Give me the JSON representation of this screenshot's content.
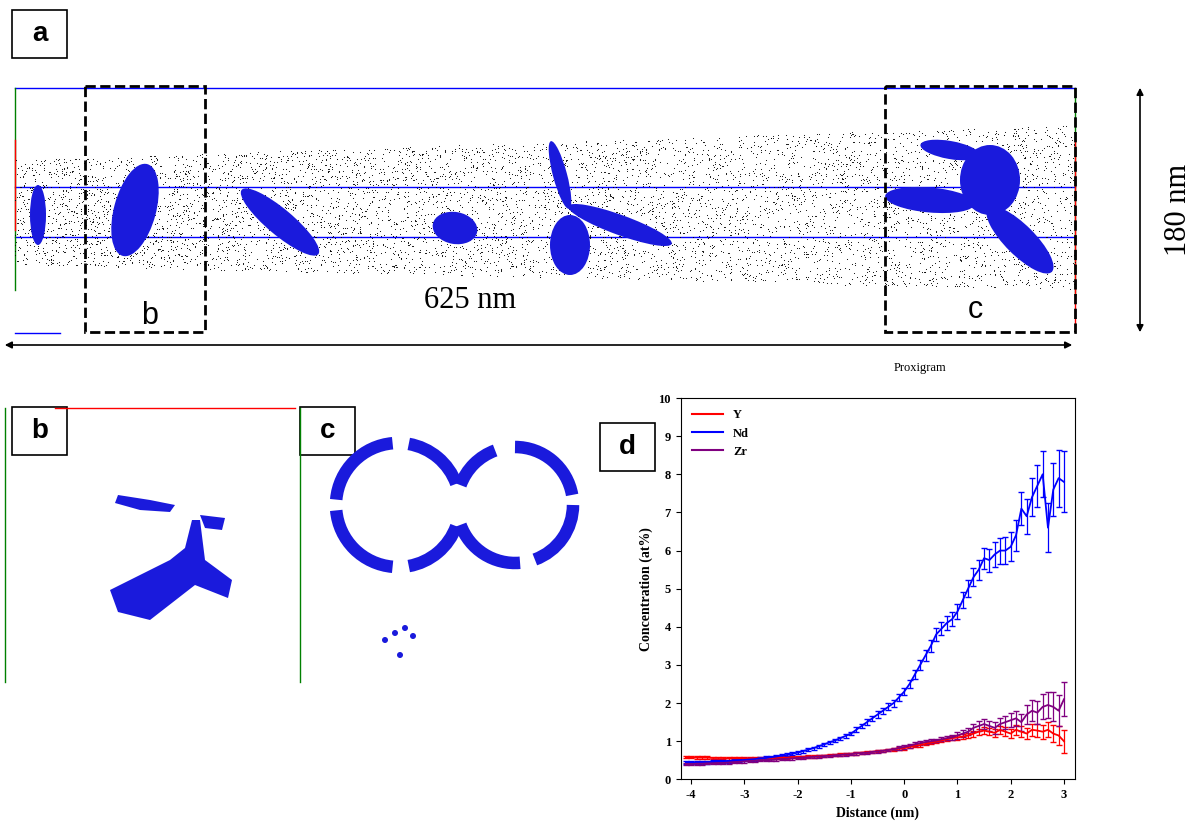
{
  "figure": {
    "panels": {
      "a": {
        "label": "a",
        "width_label": "625 nm",
        "height_label": "180 nm",
        "box_labels": [
          "b",
          "c"
        ],
        "arrow_label": "Proxigram"
      },
      "b": {
        "label": "b"
      },
      "c": {
        "label": "c"
      },
      "d": {
        "label": "d"
      }
    }
  },
  "chart_data": {
    "type": "line",
    "xlabel": "Distance (nm)",
    "ylabel": "Concentration (at%)",
    "x": [
      -4.1,
      -4.0,
      -3.9,
      -3.8,
      -3.7,
      -3.6,
      -3.5,
      -3.4,
      -3.3,
      -3.2,
      -3.1,
      -3.0,
      -2.9,
      -2.8,
      -2.7,
      -2.6,
      -2.5,
      -2.4,
      -2.3,
      -2.2,
      -2.1,
      -2.0,
      -1.9,
      -1.8,
      -1.7,
      -1.6,
      -1.5,
      -1.4,
      -1.3,
      -1.2,
      -1.1,
      -1.0,
      -0.9,
      -0.8,
      -0.7,
      -0.6,
      -0.5,
      -0.4,
      -0.3,
      -0.2,
      -0.1,
      0.0,
      0.1,
      0.2,
      0.3,
      0.4,
      0.5,
      0.6,
      0.7,
      0.8,
      0.9,
      1.0,
      1.1,
      1.2,
      1.3,
      1.4,
      1.5,
      1.6,
      1.7,
      1.8,
      1.9,
      2.0,
      2.1,
      2.2,
      2.3,
      2.4,
      2.5,
      2.6,
      2.7,
      2.8,
      2.9,
      3.0
    ],
    "xlim": [
      -4.2,
      3.2
    ],
    "xticks": [
      -4,
      -3,
      -2,
      -1,
      0,
      1,
      2,
      3
    ],
    "ylim": [
      0,
      10
    ],
    "yticks": [
      0,
      1,
      2,
      3,
      4,
      5,
      6,
      7,
      8,
      9,
      10
    ],
    "legend": "upper left",
    "series": [
      {
        "name": "Y",
        "color": "#ff0000",
        "values": [
          0.58,
          0.58,
          0.57,
          0.57,
          0.57,
          0.56,
          0.56,
          0.56,
          0.55,
          0.55,
          0.55,
          0.55,
          0.55,
          0.55,
          0.55,
          0.56,
          0.56,
          0.56,
          0.57,
          0.57,
          0.58,
          0.58,
          0.59,
          0.6,
          0.6,
          0.61,
          0.62,
          0.63,
          0.64,
          0.65,
          0.66,
          0.67,
          0.68,
          0.7,
          0.71,
          0.72,
          0.74,
          0.75,
          0.77,
          0.78,
          0.8,
          0.82,
          0.85,
          0.88,
          0.9,
          0.93,
          0.96,
          0.99,
          1.02,
          1.05,
          1.08,
          1.1,
          1.12,
          1.15,
          1.2,
          1.25,
          1.28,
          1.25,
          1.22,
          1.3,
          1.25,
          1.2,
          1.3,
          1.25,
          1.2,
          1.3,
          1.28,
          1.25,
          1.3,
          1.2,
          1.15,
          1.0
        ],
        "error": [
          0.03,
          0.03,
          0.03,
          0.03,
          0.03,
          0.03,
          0.03,
          0.03,
          0.03,
          0.03,
          0.03,
          0.03,
          0.03,
          0.03,
          0.03,
          0.03,
          0.03,
          0.03,
          0.03,
          0.03,
          0.03,
          0.03,
          0.03,
          0.03,
          0.03,
          0.03,
          0.03,
          0.03,
          0.03,
          0.03,
          0.03,
          0.03,
          0.03,
          0.03,
          0.03,
          0.03,
          0.03,
          0.03,
          0.03,
          0.03,
          0.04,
          0.04,
          0.04,
          0.04,
          0.04,
          0.04,
          0.04,
          0.04,
          0.04,
          0.04,
          0.06,
          0.06,
          0.07,
          0.07,
          0.08,
          0.08,
          0.09,
          0.09,
          0.1,
          0.1,
          0.11,
          0.12,
          0.13,
          0.14,
          0.15,
          0.16,
          0.17,
          0.18,
          0.2,
          0.22,
          0.25,
          0.3
        ]
      },
      {
        "name": "Nd",
        "color": "#0000ff",
        "values": [
          0.45,
          0.45,
          0.44,
          0.45,
          0.45,
          0.46,
          0.46,
          0.47,
          0.48,
          0.49,
          0.5,
          0.51,
          0.52,
          0.53,
          0.55,
          0.56,
          0.58,
          0.6,
          0.62,
          0.64,
          0.67,
          0.7,
          0.74,
          0.78,
          0.82,
          0.87,
          0.92,
          0.97,
          1.02,
          1.08,
          1.14,
          1.2,
          1.3,
          1.4,
          1.5,
          1.6,
          1.7,
          1.8,
          1.9,
          2.0,
          2.15,
          2.3,
          2.5,
          2.75,
          3.0,
          3.25,
          3.5,
          3.8,
          3.95,
          4.1,
          4.2,
          4.4,
          4.7,
          5.0,
          5.3,
          5.5,
          5.8,
          5.75,
          5.9,
          6.0,
          6.0,
          6.1,
          6.4,
          7.1,
          6.9,
          7.4,
          7.7,
          8.0,
          6.6,
          7.6,
          7.9,
          7.8
        ],
        "error": [
          0.04,
          0.04,
          0.04,
          0.04,
          0.04,
          0.04,
          0.04,
          0.04,
          0.04,
          0.04,
          0.04,
          0.04,
          0.04,
          0.04,
          0.04,
          0.04,
          0.04,
          0.04,
          0.04,
          0.04,
          0.04,
          0.04,
          0.04,
          0.04,
          0.04,
          0.04,
          0.04,
          0.04,
          0.04,
          0.04,
          0.05,
          0.05,
          0.06,
          0.06,
          0.07,
          0.07,
          0.08,
          0.08,
          0.09,
          0.09,
          0.1,
          0.1,
          0.11,
          0.12,
          0.13,
          0.14,
          0.15,
          0.16,
          0.17,
          0.18,
          0.19,
          0.2,
          0.21,
          0.22,
          0.24,
          0.26,
          0.28,
          0.3,
          0.32,
          0.34,
          0.36,
          0.38,
          0.4,
          0.43,
          0.46,
          0.5,
          0.55,
          0.6,
          0.65,
          0.7,
          0.75,
          0.8
        ]
      },
      {
        "name": "Zr",
        "color": "#800080",
        "values": [
          0.4,
          0.4,
          0.41,
          0.41,
          0.42,
          0.42,
          0.43,
          0.43,
          0.44,
          0.45,
          0.46,
          0.47,
          0.48,
          0.49,
          0.5,
          0.5,
          0.51,
          0.52,
          0.53,
          0.54,
          0.55,
          0.56,
          0.57,
          0.58,
          0.59,
          0.6,
          0.61,
          0.62,
          0.63,
          0.64,
          0.65,
          0.66,
          0.68,
          0.69,
          0.7,
          0.72,
          0.73,
          0.75,
          0.77,
          0.79,
          0.82,
          0.85,
          0.88,
          0.92,
          0.95,
          0.98,
          1.0,
          1.02,
          1.05,
          1.08,
          1.1,
          1.15,
          1.2,
          1.25,
          1.35,
          1.4,
          1.45,
          1.4,
          1.35,
          1.45,
          1.5,
          1.55,
          1.6,
          1.5,
          1.7,
          1.8,
          1.75,
          1.9,
          1.95,
          1.9,
          1.8,
          2.1
        ],
        "error": [
          0.03,
          0.03,
          0.03,
          0.03,
          0.03,
          0.03,
          0.03,
          0.03,
          0.03,
          0.03,
          0.03,
          0.03,
          0.03,
          0.03,
          0.03,
          0.03,
          0.03,
          0.03,
          0.03,
          0.03,
          0.03,
          0.03,
          0.03,
          0.03,
          0.03,
          0.03,
          0.03,
          0.03,
          0.03,
          0.03,
          0.03,
          0.03,
          0.03,
          0.03,
          0.03,
          0.03,
          0.03,
          0.03,
          0.03,
          0.03,
          0.05,
          0.05,
          0.05,
          0.05,
          0.05,
          0.05,
          0.05,
          0.05,
          0.05,
          0.05,
          0.07,
          0.08,
          0.09,
          0.1,
          0.11,
          0.12,
          0.13,
          0.14,
          0.15,
          0.16,
          0.17,
          0.18,
          0.2,
          0.22,
          0.25,
          0.28,
          0.3,
          0.33,
          0.35,
          0.38,
          0.4,
          0.45
        ]
      }
    ]
  }
}
